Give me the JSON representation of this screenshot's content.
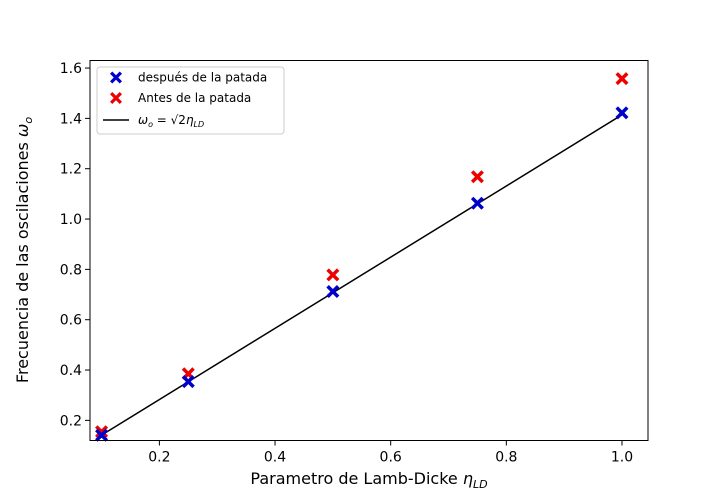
{
  "chart_data": {
    "type": "scatter",
    "xlabel": "Parametro de Lamb-Dicke",
    "xlabel_symbol": "η",
    "xlabel_subscript": "LD",
    "ylabel": "Frecuencia de las oscilaciones",
    "ylabel_symbol": "ω",
    "ylabel_subscript": "o",
    "xlim": [
      0.08,
      1.045
    ],
    "ylim": [
      0.12,
      1.63
    ],
    "xticks": [
      0.2,
      0.4,
      0.6,
      0.8,
      1.0
    ],
    "xtick_labels": [
      "0.2",
      "0.4",
      "0.6",
      "0.8",
      "1.0"
    ],
    "yticks": [
      0.2,
      0.4,
      0.6,
      0.8,
      1.0,
      1.2,
      1.4,
      1.6
    ],
    "ytick_labels": [
      "0.2",
      "0.4",
      "0.6",
      "0.8",
      "1.0",
      "1.2",
      "1.4",
      "1.6"
    ],
    "grid": false,
    "legend_position": "top-left",
    "series": [
      {
        "name": "después de la patada",
        "kind": "scatter",
        "marker": "X",
        "color": "#0000cc",
        "x": [
          0.1,
          0.25,
          0.5,
          0.75,
          1.0
        ],
        "y": [
          0.141,
          0.354,
          0.712,
          1.063,
          1.422
        ]
      },
      {
        "name": "Antes de la patada",
        "kind": "scatter",
        "marker": "X",
        "color": "#ee0000",
        "x": [
          0.1,
          0.25,
          0.5,
          0.75,
          1.0
        ],
        "y": [
          0.155,
          0.385,
          0.778,
          1.168,
          1.558
        ]
      },
      {
        "name": "ω_o = √2 η_LD",
        "name_parts": {
          "lhs": "ω",
          "lhs_sub": "o",
          "eq": " = ",
          "root": "√2",
          "rhs": "η",
          "rhs_sub": "LD"
        },
        "kind": "line",
        "color": "#000000",
        "x": [
          0.1,
          1.0
        ],
        "y": [
          0.1414,
          1.4142
        ]
      }
    ]
  }
}
